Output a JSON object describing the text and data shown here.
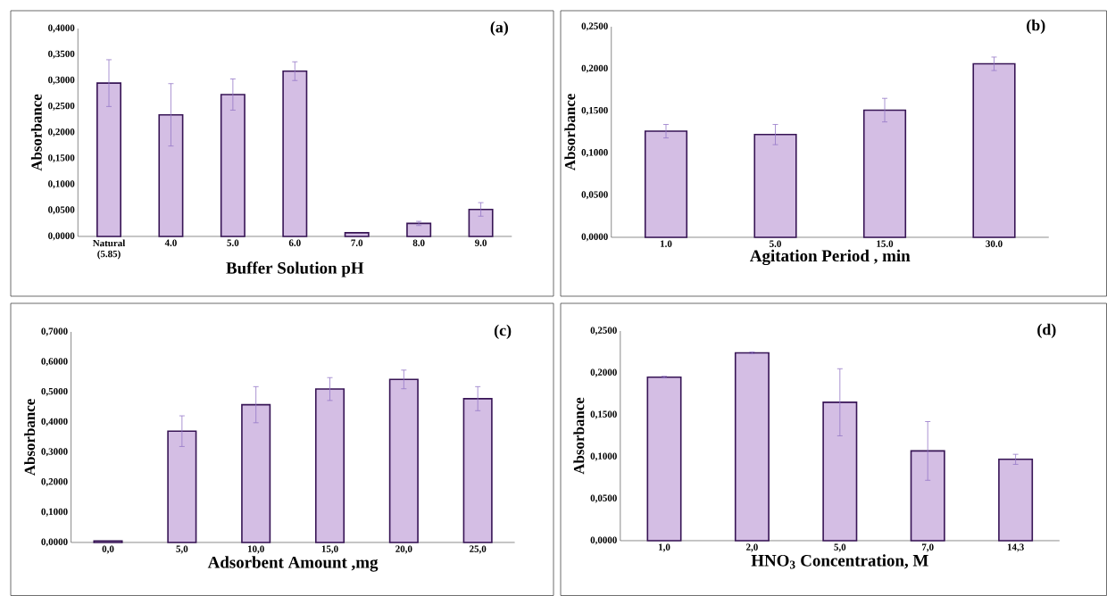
{
  "chart_data": [
    {
      "type": "bar",
      "xlabel": "Buffer Solution pH",
      "ylabel": "Absorbance",
      "annotations": [
        "(a)"
      ],
      "categories": [
        "Natural (5.85)",
        "4.0",
        "5.0",
        "6.0",
        "7.0",
        "8.0",
        "9.0"
      ],
      "values": [
        0.295,
        0.234,
        0.273,
        0.318,
        0.007,
        0.025,
        0.052
      ],
      "errors": [
        0.045,
        0.06,
        0.03,
        0.018,
        null,
        0.004,
        0.013
      ],
      "color": "#d4bee4",
      "ylim": [
        0,
        0.4
      ],
      "yticks": [
        {
          "value": 0,
          "label": "0,0000"
        },
        {
          "value": 0.05,
          "label": "0,0500"
        },
        {
          "value": 0.1,
          "label": "0,1000"
        },
        {
          "value": 0.15,
          "label": "0,1500"
        },
        {
          "value": 0.2,
          "label": "0,2000"
        },
        {
          "value": 0.25,
          "label": "0,2500"
        },
        {
          "value": 0.3,
          "label": "0,3000"
        },
        {
          "value": 0.35,
          "label": "0,3500"
        },
        {
          "value": 0.4,
          "label": "0,4000"
        }
      ]
    },
    {
      "type": "bar",
      "xlabel": "Agitation Period , min",
      "ylabel": "Absorbance",
      "annotations": [
        "(b)"
      ],
      "categories": [
        "1.0",
        "5.0",
        "15.0",
        "30.0"
      ],
      "values": [
        0.126,
        0.122,
        0.151,
        0.206
      ],
      "errors": [
        0.008,
        0.012,
        0.014,
        0.008
      ],
      "color": "#d4bee4",
      "ylim": [
        0,
        0.25
      ],
      "yticks": [
        {
          "value": 0,
          "label": "0,0000"
        },
        {
          "value": 0.05,
          "label": "0,0500"
        },
        {
          "value": 0.1,
          "label": "0,1000"
        },
        {
          "value": 0.15,
          "label": "0,1500"
        },
        {
          "value": 0.2,
          "label": "0,2000"
        },
        {
          "value": 0.25,
          "label": "0,2500"
        }
      ]
    },
    {
      "type": "bar",
      "xlabel": "Adsorbent Amount ,mg",
      "ylabel": "Absorbance",
      "annotations": [
        "(c)"
      ],
      "categories": [
        "0,0",
        "5,0",
        "10,0",
        "15,0",
        "20,0",
        "25,0"
      ],
      "values": [
        0.005,
        0.37,
        0.458,
        0.51,
        0.542,
        0.478
      ],
      "errors": [
        null,
        0.051,
        0.06,
        0.038,
        0.031,
        0.04
      ],
      "color": "#d4bee4",
      "ylim": [
        0,
        0.7
      ],
      "yticks": [
        {
          "value": 0,
          "label": "0,0000"
        },
        {
          "value": 0.1,
          "label": "0,1000"
        },
        {
          "value": 0.2,
          "label": "0,2000"
        },
        {
          "value": 0.3,
          "label": "0,3000"
        },
        {
          "value": 0.4,
          "label": "0,4000"
        },
        {
          "value": 0.5,
          "label": "0,5000"
        },
        {
          "value": 0.6,
          "label": "0,6000"
        },
        {
          "value": 0.7,
          "label": "0,7000"
        }
      ]
    },
    {
      "type": "bar",
      "xlabel": "HNO$_{3}$ Concentration, M",
      "ylabel": "Absorbance",
      "annotations": [
        "(d)"
      ],
      "categories": [
        "1,0",
        "2,0",
        "5,0",
        "7,0",
        "14,3"
      ],
      "values": [
        0.195,
        0.224,
        0.165,
        0.107,
        0.097
      ],
      "errors": [
        0.001,
        0.001,
        0.04,
        0.035,
        0.006
      ],
      "color": "#d4bee4",
      "ylim": [
        0,
        0.25
      ],
      "yticks": [
        {
          "value": 0,
          "label": "0,0000"
        },
        {
          "value": 0.05,
          "label": "0,0500"
        },
        {
          "value": 0.1,
          "label": "0,1000"
        },
        {
          "value": 0.15,
          "label": "0,1500"
        },
        {
          "value": 0.2,
          "label": "0,2000"
        },
        {
          "value": 0.25,
          "label": "0,2500"
        }
      ]
    }
  ]
}
